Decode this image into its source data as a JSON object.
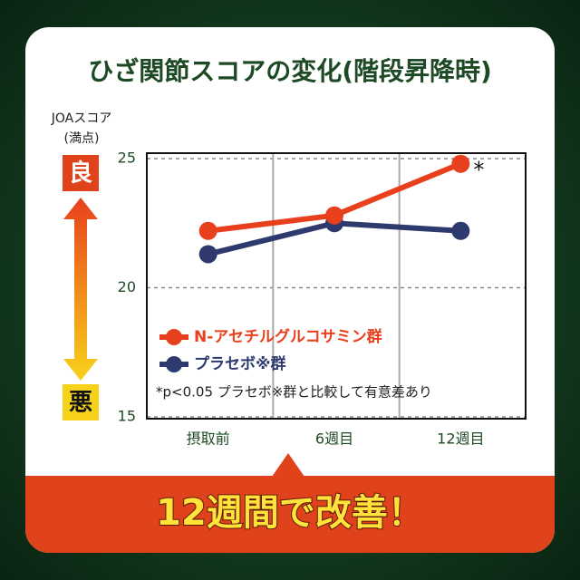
{
  "chart_data": {
    "type": "line",
    "title": "ひざ関節スコアの変化(階段昇降時)",
    "y_axis_label": "JOAスコア",
    "y_axis_sublabel": "(満点)",
    "good_label": "良",
    "bad_label": "悪",
    "categories": [
      "摂取前",
      "6週目",
      "12週目"
    ],
    "series": [
      {
        "name": "N-アセチルグルコサミン群",
        "color": "#e8401c",
        "values": [
          22.2,
          22.8,
          24.8
        ]
      },
      {
        "name": "プラセボ※群",
        "color": "#2e3a6e",
        "values": [
          21.3,
          22.5,
          22.2
        ]
      }
    ],
    "ylim": [
      15,
      25
    ],
    "yticks": [
      15,
      20,
      25
    ],
    "annotation": "*",
    "note": "*p<0.05 プラセボ※群と比較して有意差あり",
    "callout": "12週間で改善！"
  }
}
